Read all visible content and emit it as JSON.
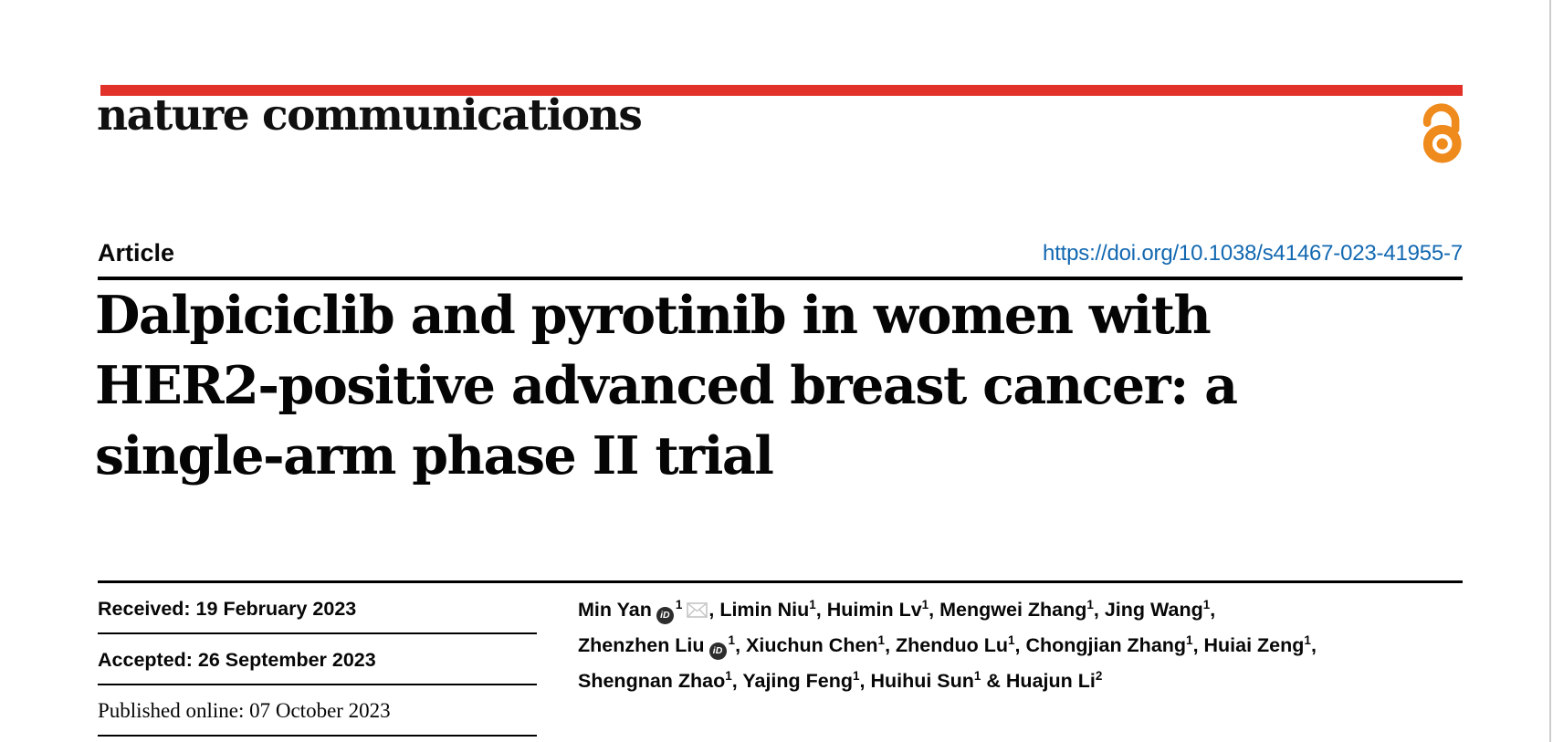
{
  "colors": {
    "header_bar": "#e23128",
    "doi_link": "#1268b1",
    "open_access": "#ef8a1d",
    "orcid_badge": "#2d2d2d",
    "envelope": "#c5c5c5",
    "page_edge": "#cccccc"
  },
  "journal": {
    "wordmark": "nature communications"
  },
  "header": {
    "article_label": "Article",
    "doi": "https://doi.org/10.1038/s41467-023-41955-7"
  },
  "title_lines": [
    "Dalpiciclib and pyrotinib in women with",
    "HER2-positive advanced breast cancer: a",
    "single-arm phase II trial"
  ],
  "dates": [
    {
      "row": "Received: 19 February 2023",
      "style": "sans"
    },
    {
      "row": "Accepted: 26 September 2023",
      "style": "sans"
    },
    {
      "row": "Published online: 07 October 2023",
      "style": "serif"
    }
  ],
  "icons": {
    "orcid_label": "iD",
    "open_access": "open-lock-icon",
    "email": "envelope-icon"
  },
  "author_lines": [
    [
      {
        "t": "name",
        "v": "Min Yan"
      },
      {
        "t": "orcid"
      },
      {
        "t": "sup",
        "v": "1"
      },
      {
        "t": "mail"
      },
      {
        "t": "text",
        "v": ", "
      },
      {
        "t": "name",
        "v": "Limin Niu"
      },
      {
        "t": "sup",
        "v": "1"
      },
      {
        "t": "text",
        "v": ", "
      },
      {
        "t": "name",
        "v": "Huimin Lv"
      },
      {
        "t": "sup",
        "v": "1"
      },
      {
        "t": "text",
        "v": ", "
      },
      {
        "t": "name",
        "v": "Mengwei Zhang"
      },
      {
        "t": "sup",
        "v": "1"
      },
      {
        "t": "text",
        "v": ", "
      },
      {
        "t": "name",
        "v": "Jing Wang"
      },
      {
        "t": "sup",
        "v": "1"
      },
      {
        "t": "text",
        "v": ","
      }
    ],
    [
      {
        "t": "name",
        "v": "Zhenzhen Liu"
      },
      {
        "t": "orcid"
      },
      {
        "t": "sup",
        "v": "1"
      },
      {
        "t": "text",
        "v": ", "
      },
      {
        "t": "name",
        "v": "Xiuchun Chen"
      },
      {
        "t": "sup",
        "v": "1"
      },
      {
        "t": "text",
        "v": ", "
      },
      {
        "t": "name",
        "v": "Zhenduo Lu"
      },
      {
        "t": "sup",
        "v": "1"
      },
      {
        "t": "text",
        "v": ", "
      },
      {
        "t": "name",
        "v": "Chongjian Zhang"
      },
      {
        "t": "sup",
        "v": "1"
      },
      {
        "t": "text",
        "v": ", "
      },
      {
        "t": "name",
        "v": "Huiai Zeng"
      },
      {
        "t": "sup",
        "v": "1"
      },
      {
        "t": "text",
        "v": ","
      }
    ],
    [
      {
        "t": "name",
        "v": "Shengnan Zhao"
      },
      {
        "t": "sup",
        "v": "1"
      },
      {
        "t": "text",
        "v": ", "
      },
      {
        "t": "name",
        "v": "Yajing Feng"
      },
      {
        "t": "sup",
        "v": "1"
      },
      {
        "t": "text",
        "v": ", "
      },
      {
        "t": "name",
        "v": "Huihui Sun"
      },
      {
        "t": "sup",
        "v": "1"
      },
      {
        "t": "text",
        "v": " & "
      },
      {
        "t": "name",
        "v": "Huajun Li"
      },
      {
        "t": "sup",
        "v": "2"
      }
    ]
  ]
}
